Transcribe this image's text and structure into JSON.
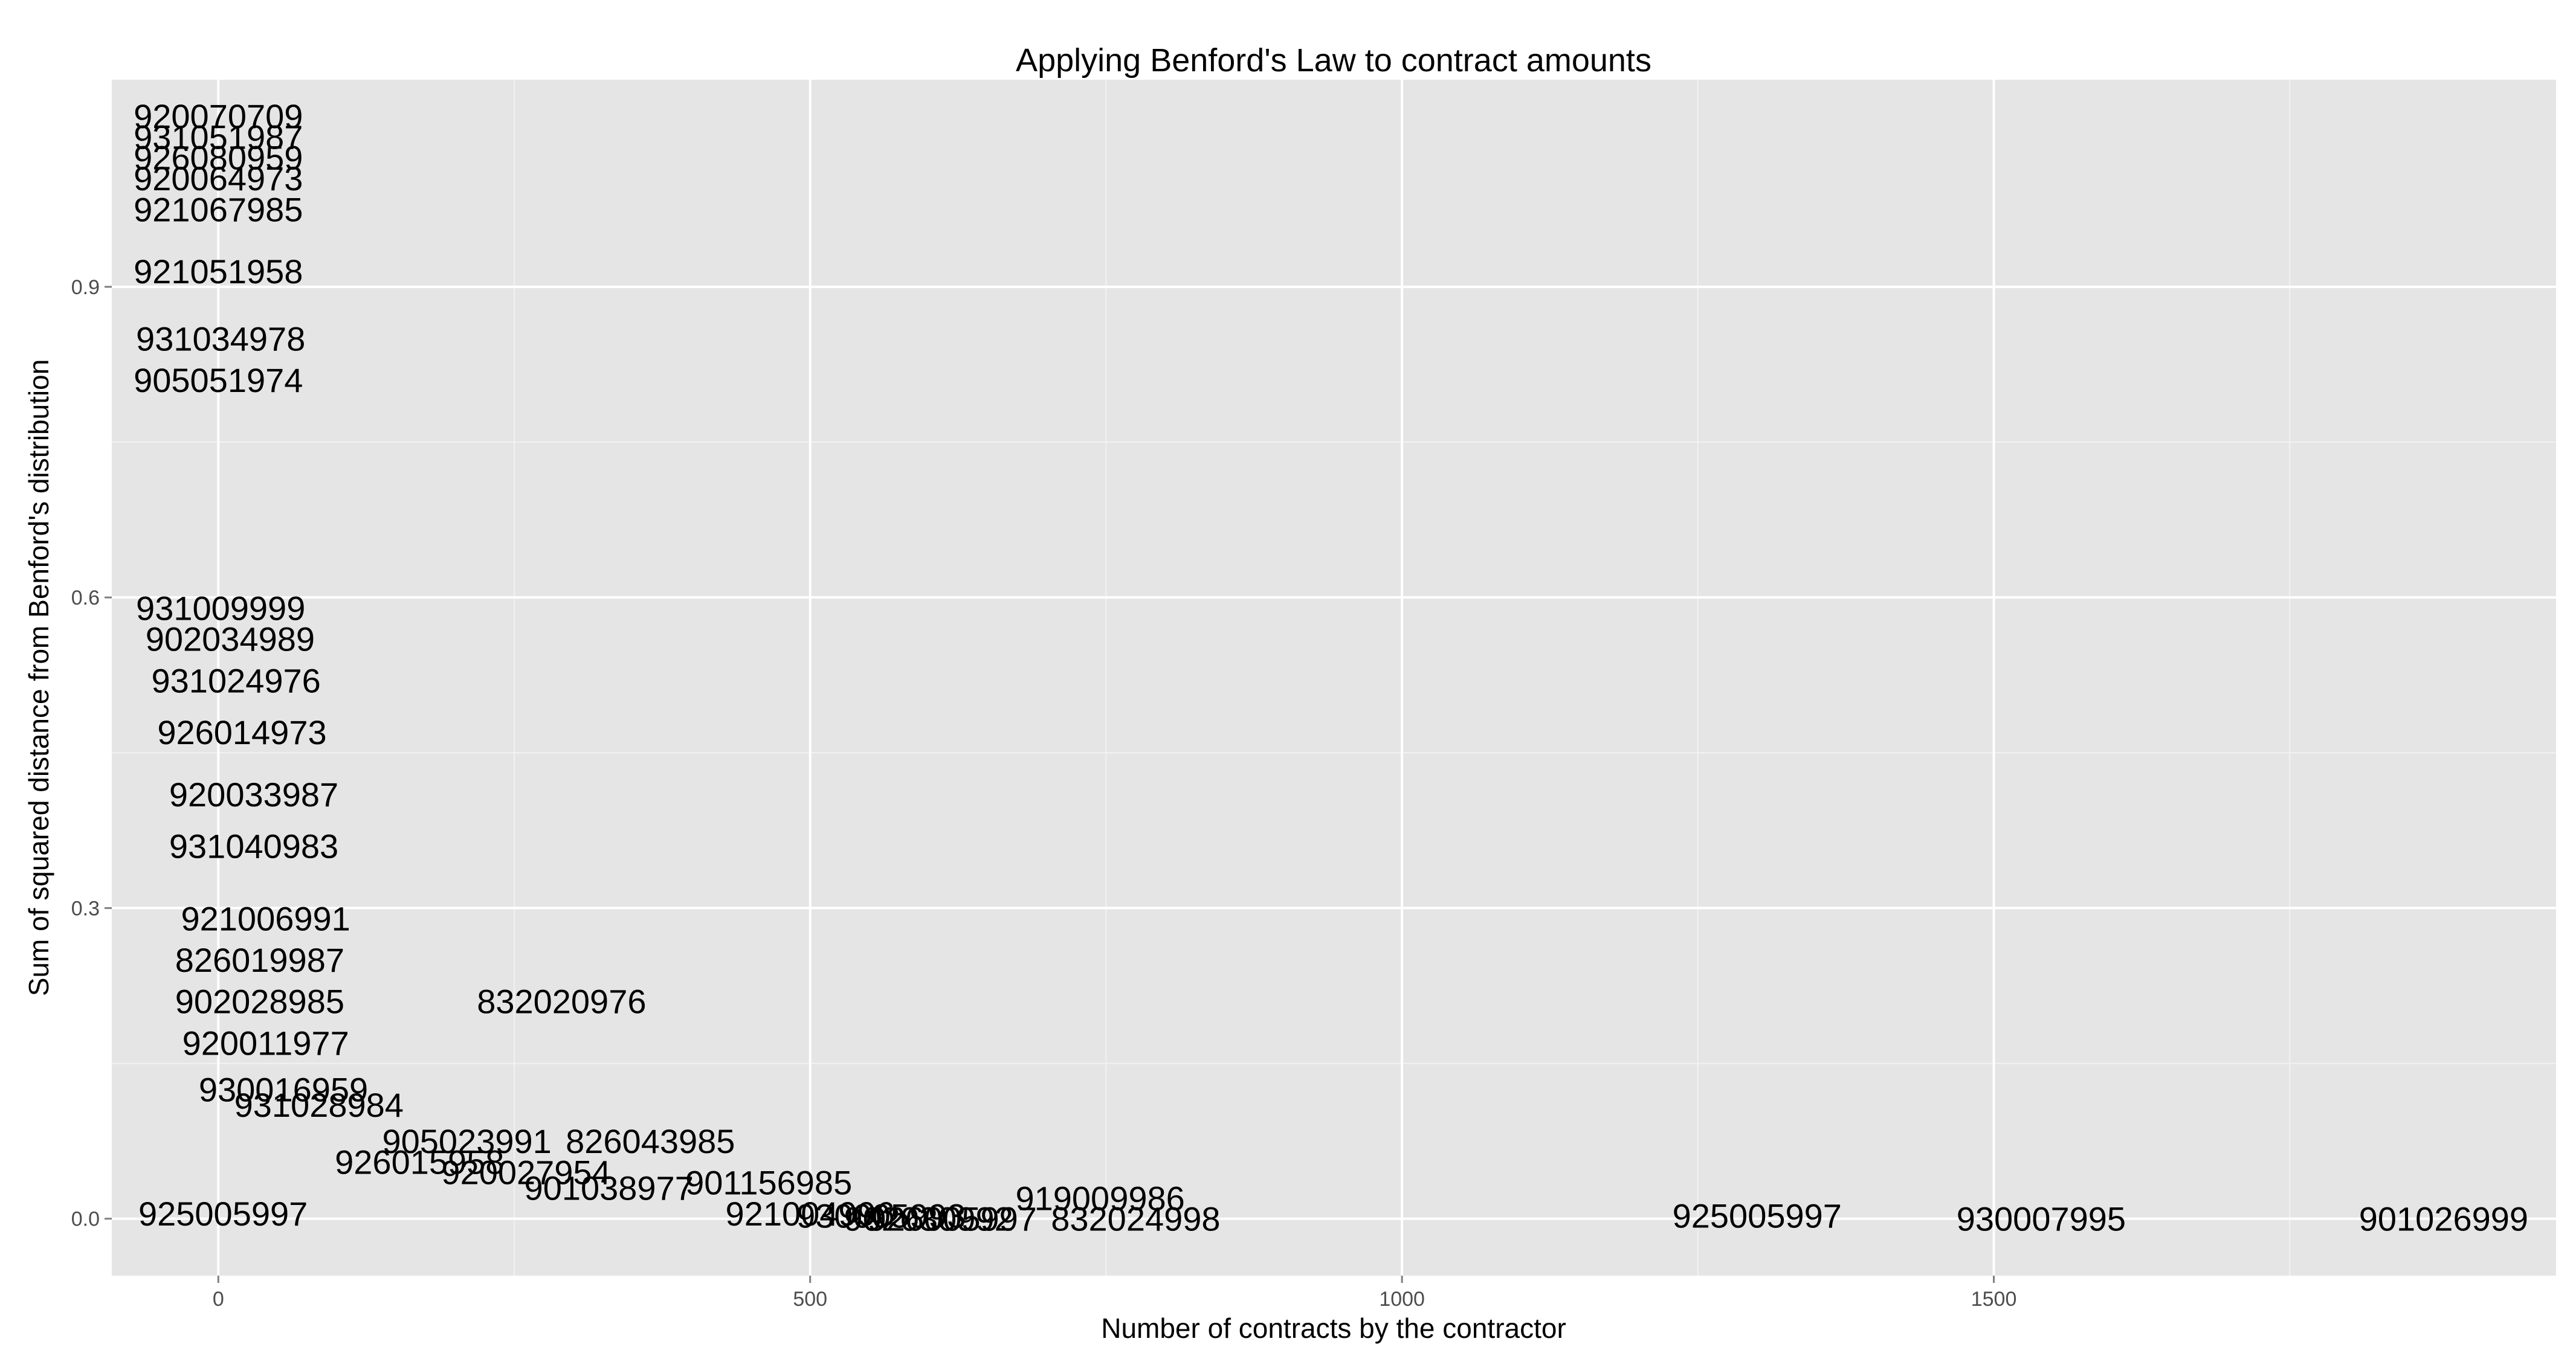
{
  "chart_data": {
    "type": "scatter",
    "title": "Applying Benford's Law to contract amounts",
    "xlabel": "Number of contracts by the contractor",
    "ylabel": "Sum of squared distance from Benford's distribution",
    "xlim": [
      -90,
      1975
    ],
    "ylim": [
      -0.055,
      1.1
    ],
    "x_ticks": [
      0,
      500,
      1000,
      1500
    ],
    "x_tick_labels": [
      "0",
      "500",
      "1000",
      "1500"
    ],
    "y_ticks": [
      0.0,
      0.3,
      0.6,
      0.9
    ],
    "y_tick_labels": [
      "0.0",
      "0.3",
      "0.6",
      "0.9"
    ],
    "x_minor_ticks": [
      250,
      750,
      1250,
      1750
    ],
    "y_minor_ticks": [
      0.15,
      0.45,
      0.75
    ],
    "grid": true,
    "points": [
      {
        "x": 4,
        "y": 0.005,
        "label": "925005997"
      },
      {
        "x": 2,
        "y": 0.85,
        "label": "931034978"
      },
      {
        "x": 2,
        "y": 0.59,
        "label": "931009999"
      },
      {
        "x": 290,
        "y": 0.21,
        "label": "832020976"
      },
      {
        "x": 365,
        "y": 0.075,
        "label": "826043985"
      },
      {
        "x": 745,
        "y": 0.02,
        "label": "919009986"
      },
      {
        "x": 1300,
        "y": 0.003,
        "label": "925005997"
      },
      {
        "x": 1540,
        "y": 0.0,
        "label": "930007995"
      },
      {
        "x": 1880,
        "y": 0.0,
        "label": "901026999"
      },
      {
        "x": 775,
        "y": 0.0,
        "label": "832024998"
      },
      {
        "x": 620,
        "y": 0.0,
        "label": "926005997"
      },
      {
        "x": 465,
        "y": 0.035,
        "label": "901156985"
      },
      {
        "x": 0,
        "y": 1.065,
        "label": "920070709"
      },
      {
        "x": 0,
        "y": 1.045,
        "label": "931051987"
      },
      {
        "x": 0,
        "y": 1.025,
        "label": "926080959"
      },
      {
        "x": 0,
        "y": 1.005,
        "label": "920064973"
      },
      {
        "x": 0,
        "y": 0.975,
        "label": "921067985"
      },
      {
        "x": 0,
        "y": 0.915,
        "label": "921051958"
      },
      {
        "x": 0,
        "y": 0.81,
        "label": "905051974"
      },
      {
        "x": 10,
        "y": 0.56,
        "label": "902034989"
      },
      {
        "x": 15,
        "y": 0.52,
        "label": "931024976"
      },
      {
        "x": 20,
        "y": 0.47,
        "label": "926014973"
      },
      {
        "x": 30,
        "y": 0.41,
        "label": "920033987"
      },
      {
        "x": 30,
        "y": 0.36,
        "label": "931040983"
      },
      {
        "x": 40,
        "y": 0.29,
        "label": "921006991"
      },
      {
        "x": 35,
        "y": 0.25,
        "label": "826019987"
      },
      {
        "x": 35,
        "y": 0.21,
        "label": "902028985"
      },
      {
        "x": 40,
        "y": 0.17,
        "label": "920011977"
      },
      {
        "x": 55,
        "y": 0.125,
        "label": "930016959"
      },
      {
        "x": 85,
        "y": 0.11,
        "label": "931028984"
      },
      {
        "x": 210,
        "y": 0.075,
        "label": "905023991"
      },
      {
        "x": 170,
        "y": 0.055,
        "label": "926015958"
      },
      {
        "x": 260,
        "y": 0.045,
        "label": "920027954"
      },
      {
        "x": 330,
        "y": 0.03,
        "label": "901038977"
      },
      {
        "x": 500,
        "y": 0.005,
        "label": "921004996"
      },
      {
        "x": 560,
        "y": 0.003,
        "label": "930005993"
      },
      {
        "x": 600,
        "y": 0.0,
        "label": "902030992"
      }
    ]
  }
}
